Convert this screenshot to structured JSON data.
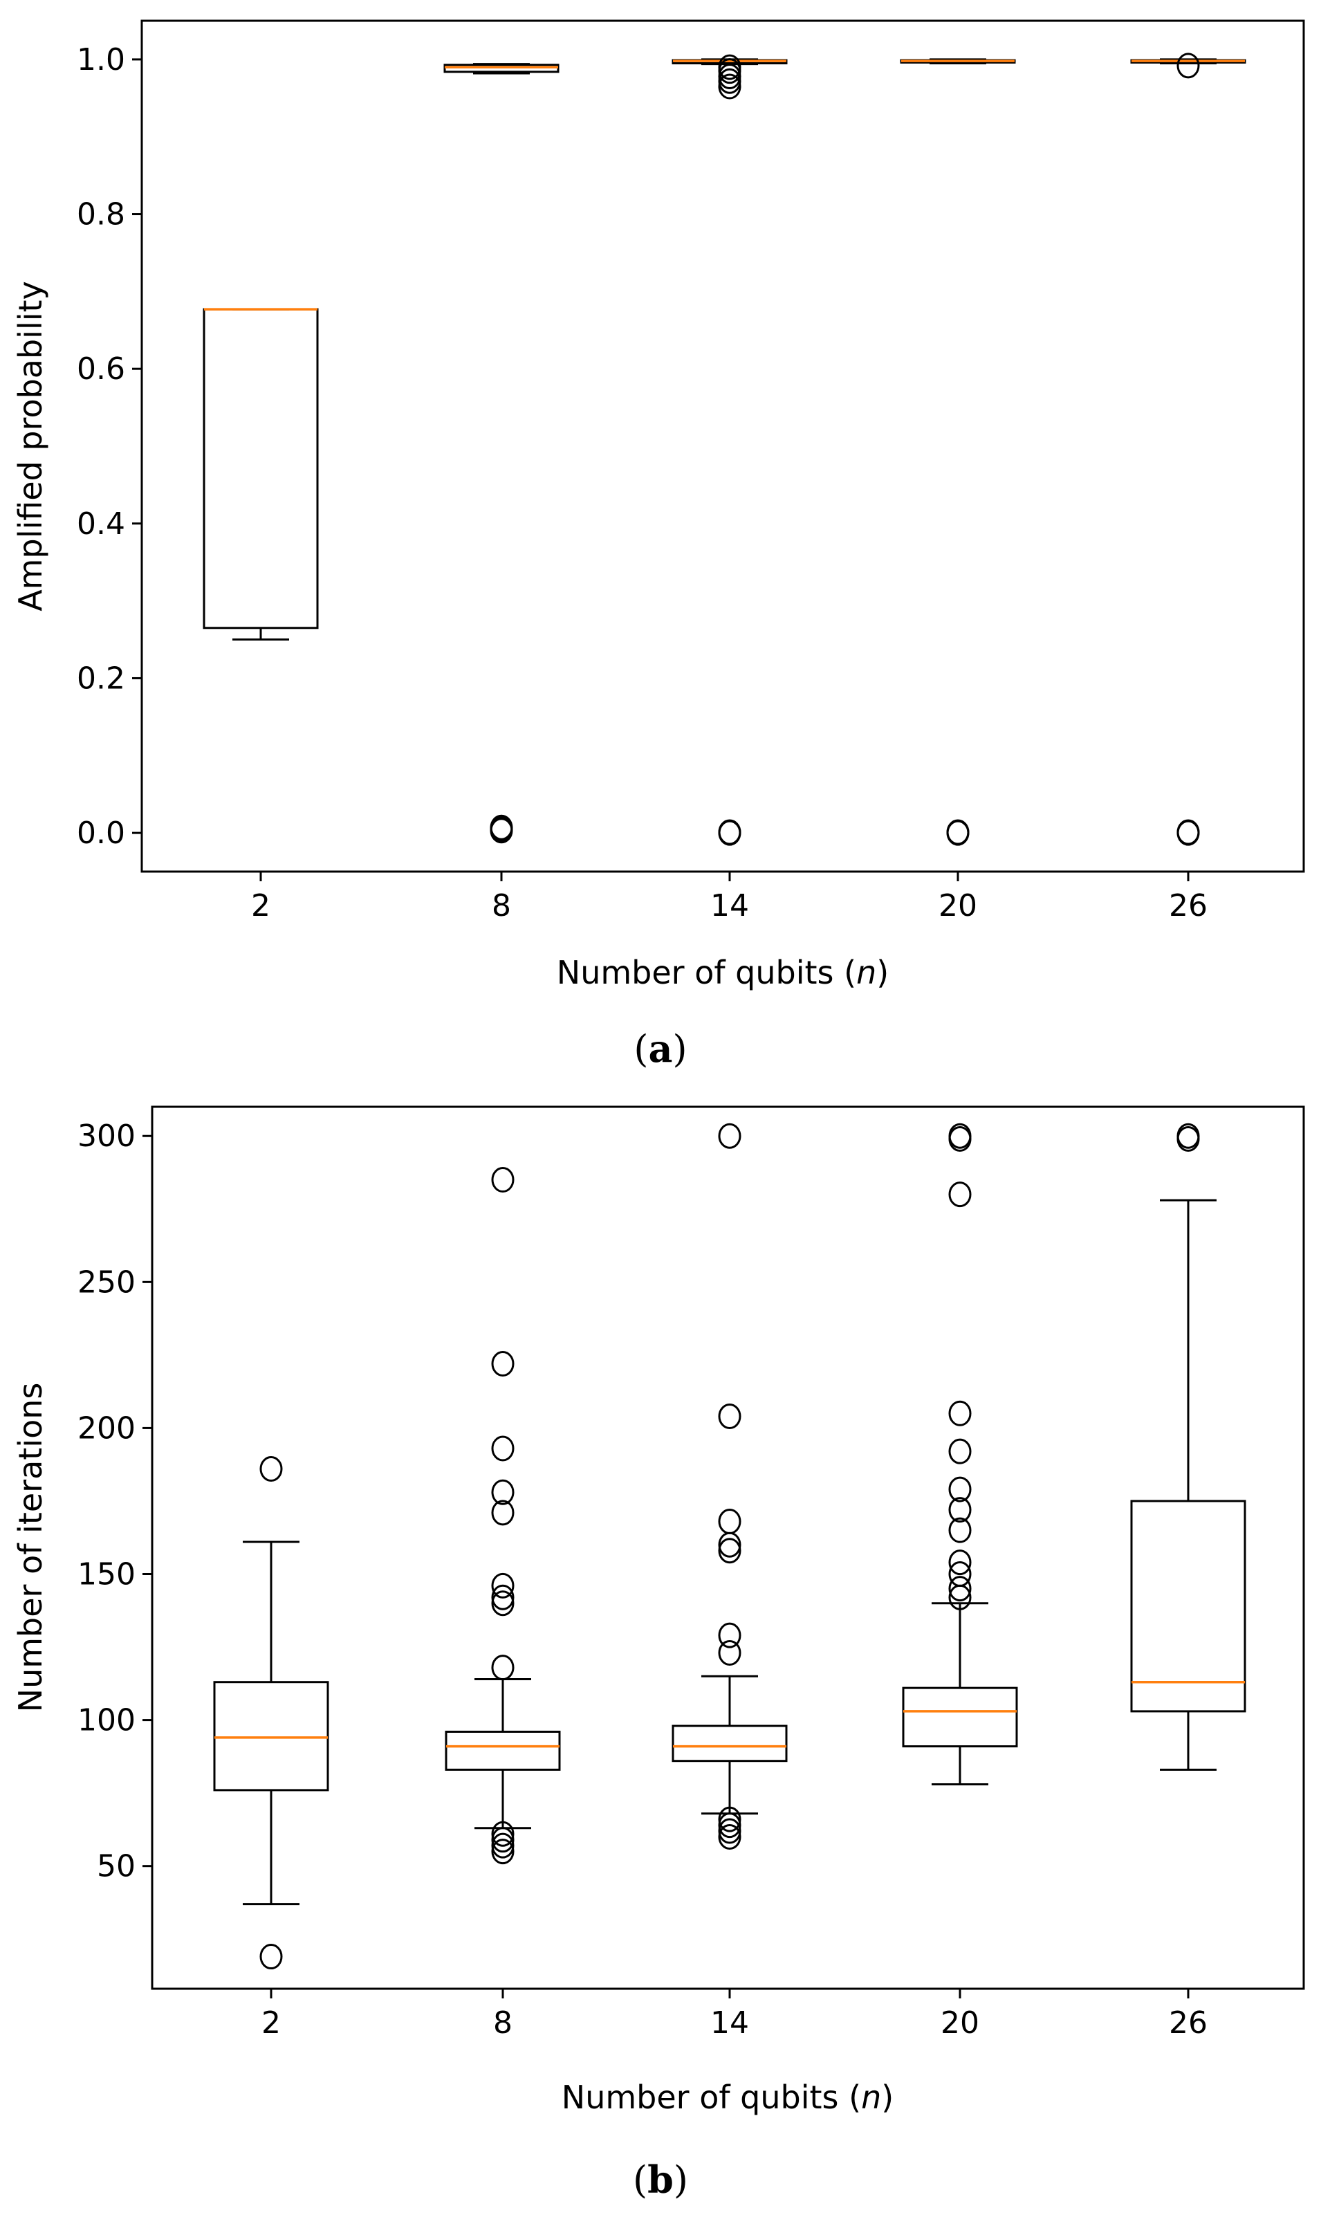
{
  "chart_data": [
    {
      "panel_label": "(a)",
      "caption_letter": "a",
      "type": "box",
      "title": "",
      "xlabel_prefix": "Number of qubits (",
      "xlabel_var": "n",
      "xlabel_suffix": ")",
      "ylabel": "Amplified probability",
      "ylim": [
        -0.05,
        1.05
      ],
      "yticks": [
        0.0,
        0.2,
        0.4,
        0.6,
        0.8,
        1.0
      ],
      "ytick_labels": [
        "0.0",
        "0.2",
        "0.4",
        "0.6",
        "0.8",
        "1.0"
      ],
      "categories": [
        "2",
        "8",
        "14",
        "20",
        "26"
      ],
      "boxes": [
        {
          "whislo": 0.25,
          "q1": 0.265,
          "med": 0.677,
          "q3": 0.677,
          "whishi": 0.677,
          "fliers": []
        },
        {
          "whislo": 0.982,
          "q1": 0.984,
          "med": 0.99,
          "q3": 0.993,
          "whishi": 0.994,
          "fliers": [
            0.003,
            0.005,
            0.007
          ]
        },
        {
          "whislo": 0.994,
          "q1": 0.995,
          "med": 0.998,
          "q3": 0.999,
          "whishi": 1.0,
          "fliers": [
            0.0,
            0.001,
            0.965,
            0.972,
            0.978,
            0.985,
            0.99
          ]
        },
        {
          "whislo": 0.995,
          "q1": 0.996,
          "med": 0.998,
          "q3": 0.999,
          "whishi": 1.0,
          "fliers": [
            0.0,
            0.001
          ]
        },
        {
          "whislo": 0.995,
          "q1": 0.996,
          "med": 0.998,
          "q3": 0.999,
          "whishi": 1.0,
          "fliers": [
            0.0,
            0.001,
            0.992
          ]
        }
      ]
    },
    {
      "panel_label": "(b)",
      "caption_letter": "b",
      "type": "box",
      "title": "",
      "xlabel_prefix": "Number of qubits (",
      "xlabel_var": "n",
      "xlabel_suffix": ")",
      "ylabel": "Number of iterations",
      "ylim": [
        8,
        310
      ],
      "yticks": [
        50,
        100,
        150,
        200,
        250,
        300
      ],
      "ytick_labels": [
        "50",
        "100",
        "150",
        "200",
        "250",
        "300"
      ],
      "categories": [
        "2",
        "8",
        "14",
        "20",
        "26"
      ],
      "boxes": [
        {
          "whislo": 37,
          "q1": 76,
          "med": 94,
          "q3": 113,
          "whishi": 161,
          "fliers": [
            19,
            186
          ]
        },
        {
          "whislo": 63,
          "q1": 83,
          "med": 91,
          "q3": 96,
          "whishi": 114,
          "fliers": [
            55,
            57,
            59,
            61,
            118,
            140,
            142,
            146,
            171,
            178,
            193,
            222,
            285
          ]
        },
        {
          "whislo": 68,
          "q1": 86,
          "med": 91,
          "q3": 98,
          "whishi": 115,
          "fliers": [
            60,
            62,
            64,
            66,
            123,
            129,
            158,
            160,
            168,
            204,
            300
          ]
        },
        {
          "whislo": 78,
          "q1": 91,
          "med": 103,
          "q3": 111,
          "whishi": 140,
          "fliers": [
            142,
            145,
            150,
            154,
            165,
            172,
            179,
            192,
            205,
            280,
            299,
            300
          ]
        },
        {
          "whislo": 83,
          "q1": 103,
          "med": 113,
          "q3": 175,
          "whishi": 278,
          "fliers": [
            299,
            300
          ]
        }
      ]
    }
  ]
}
